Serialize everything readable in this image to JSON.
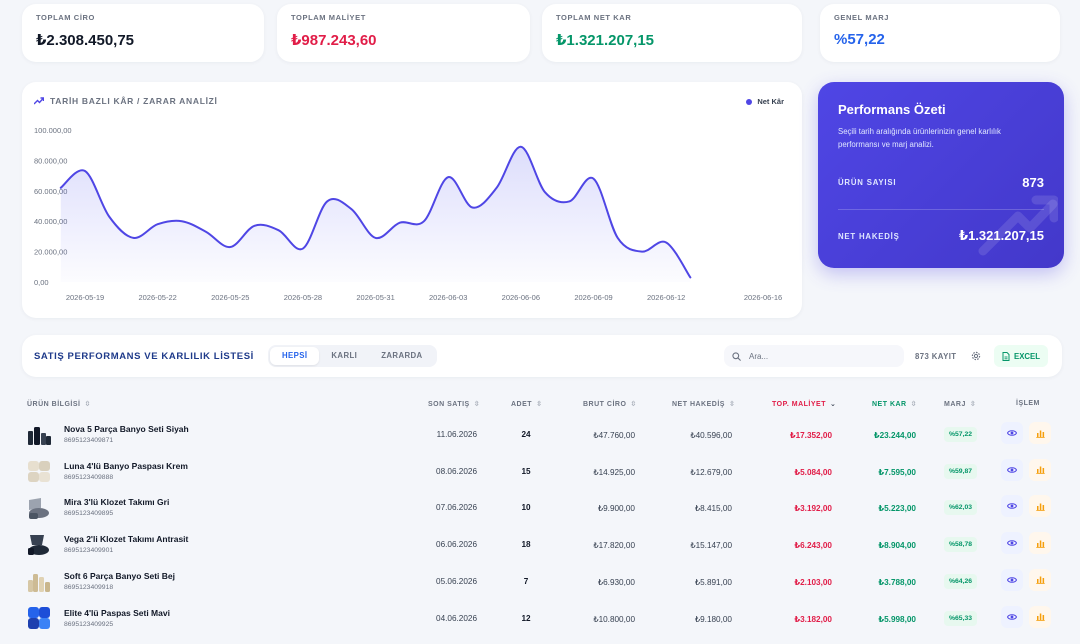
{
  "kpis": [
    {
      "label": "TOPLAM CİRO",
      "value": "₺2.308.450,75",
      "color": "#111827"
    },
    {
      "label": "TOPLAM MALİYET",
      "value": "₺987.243,60",
      "color": "#e11d48"
    },
    {
      "label": "TOPLAM NET KAR",
      "value": "₺1.321.207,15",
      "color": "#059669"
    },
    {
      "label": "GENEL MARJ",
      "value": "%57,22",
      "color": "#2563eb"
    }
  ],
  "chart_data": {
    "type": "area",
    "title": "TARİH BAZLI KÂR / ZARAR ANALİZİ",
    "legend": [
      "Net Kâr"
    ],
    "legend_position": "top-right",
    "ylim": [
      0,
      100000
    ],
    "y_ticks": [
      "100.000,00",
      "80.000,00",
      "60.000,00",
      "40.000,00",
      "20.000,00",
      "0,00"
    ],
    "x_ticks": [
      "2026-05-19",
      "2026-05-22",
      "2026-05-25",
      "2026-05-28",
      "2026-05-31",
      "2026-06-03",
      "2026-06-06",
      "2026-06-09",
      "2026-06-12",
      "2026-06-16"
    ],
    "grid": false,
    "series": [
      {
        "name": "Net Kâr",
        "color": "#4f46e5",
        "points": [
          [
            "2026-05-18",
            62000
          ],
          [
            "2026-05-19",
            73000
          ],
          [
            "2026-05-20",
            43000
          ],
          [
            "2026-05-21",
            29000
          ],
          [
            "2026-05-22",
            38000
          ],
          [
            "2026-05-23",
            40000
          ],
          [
            "2026-05-24",
            33000
          ],
          [
            "2026-05-25",
            23000
          ],
          [
            "2026-05-26",
            37000
          ],
          [
            "2026-05-27",
            34000
          ],
          [
            "2026-05-28",
            22000
          ],
          [
            "2026-05-29",
            53000
          ],
          [
            "2026-05-30",
            48000
          ],
          [
            "2026-05-31",
            29000
          ],
          [
            "2026-06-01",
            39000
          ],
          [
            "2026-06-02",
            40000
          ],
          [
            "2026-06-03",
            69000
          ],
          [
            "2026-06-04",
            49000
          ],
          [
            "2026-06-05",
            62000
          ],
          [
            "2026-06-06",
            89000
          ],
          [
            "2026-06-07",
            59000
          ],
          [
            "2026-06-08",
            53000
          ],
          [
            "2026-06-09",
            68000
          ],
          [
            "2026-06-10",
            29000
          ],
          [
            "2026-06-11",
            20000
          ],
          [
            "2026-06-12",
            26000
          ],
          [
            "2026-06-13",
            3000
          ]
        ]
      }
    ]
  },
  "performance": {
    "title": "Performans Özeti",
    "description": "Seçili tarih aralığında ürünlerinizin genel karlılık performansı ve marj analizi.",
    "product_count_label": "ÜRÜN SAYISI",
    "product_count": "873",
    "net_label": "NET HAKEDİŞ",
    "net_value": "₺1.321.207,15"
  },
  "list": {
    "title": "SATIŞ PERFORMANS VE KARLILIK LİSTESİ",
    "filters": [
      "HEPSİ",
      "KARLI",
      "ZARARDA"
    ],
    "active_filter": "HEPSİ",
    "search_placeholder": "Ara...",
    "count": "873 KAYIT",
    "excel_label": "EXCEL",
    "columns": {
      "product": "ÜRÜN BİLGİSİ",
      "last_sale": "SON SATIŞ",
      "qty": "ADET",
      "gross": "BRUT CİRO",
      "net_payout": "NET HAKEDİŞ",
      "total_cost": "TOP. MALİYET",
      "net_profit": "NET KAR",
      "margin": "MARJ",
      "action": "İŞLEM"
    },
    "rows": [
      {
        "name": "Nova 5 Parça Banyo Seti Siyah",
        "sku": "8695123409871",
        "date": "11.06.2026",
        "qty": "24",
        "gross": "₺47.760,00",
        "payout": "₺40.596,00",
        "cost": "₺17.352,00",
        "profit": "₺23.244,00",
        "margin": "%57,22",
        "thumb": "dark-bath-set"
      },
      {
        "name": "Luna 4'lü Banyo Paspası Krem",
        "sku": "8695123409888",
        "date": "08.06.2026",
        "qty": "15",
        "gross": "₺14.925,00",
        "payout": "₺12.679,00",
        "cost": "₺5.084,00",
        "profit": "₺7.595,00",
        "margin": "%59,87",
        "thumb": "cream-mat"
      },
      {
        "name": "Mira 3'lü Klozet Takımı Gri",
        "sku": "8695123409895",
        "date": "07.06.2026",
        "qty": "10",
        "gross": "₺9.900,00",
        "payout": "₺8.415,00",
        "cost": "₺3.192,00",
        "profit": "₺5.223,00",
        "margin": "%62,03",
        "thumb": "gray-toilet-set"
      },
      {
        "name": "Vega 2'li Klozet Takımı Antrasit",
        "sku": "8695123409901",
        "date": "06.06.2026",
        "qty": "18",
        "gross": "₺17.820,00",
        "payout": "₺15.147,00",
        "cost": "₺6.243,00",
        "profit": "₺8.904,00",
        "margin": "%58,78",
        "thumb": "anthracite-toilet-set"
      },
      {
        "name": "Soft 6 Parça Banyo Seti Bej",
        "sku": "8695123409918",
        "date": "05.06.2026",
        "qty": "7",
        "gross": "₺6.930,00",
        "payout": "₺5.891,00",
        "cost": "₺2.103,00",
        "profit": "₺3.788,00",
        "margin": "%64,26",
        "thumb": "beige-bath-set"
      },
      {
        "name": "Elite 4'lü Paspas Seti Mavi",
        "sku": "8695123409925",
        "date": "04.06.2026",
        "qty": "12",
        "gross": "₺10.800,00",
        "payout": "₺9.180,00",
        "cost": "₺3.182,00",
        "profit": "₺5.998,00",
        "margin": "%65,33",
        "thumb": "blue-mat-set"
      }
    ]
  }
}
